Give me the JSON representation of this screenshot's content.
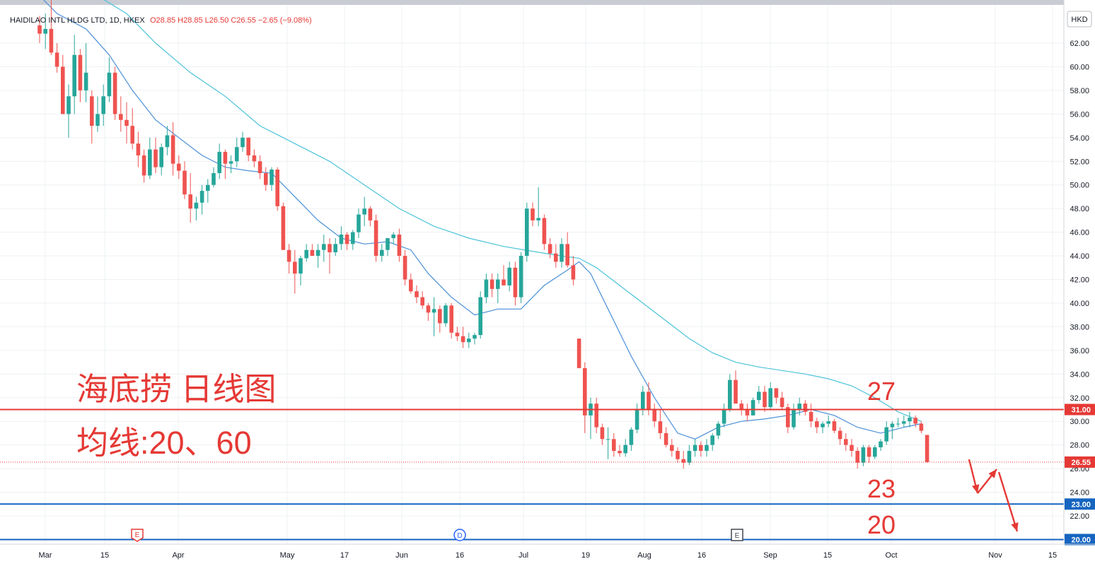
{
  "header": {
    "symbol": "HAIDILAO INTL HLDG LTD, 1D, HKEX",
    "ohlc": "O28.85  H28.85  L26.50  C26.55  −2.65 (−9.08%)"
  },
  "currency_label": "HKD",
  "annotations": {
    "title_line1": "海底捞 日线图",
    "title_line2": "均线:20、60",
    "level_27": "27",
    "level_23": "23",
    "level_20": "20"
  },
  "colors": {
    "up": "#26a69a",
    "down": "#ef5350",
    "ma20": "#4a8fd8",
    "ma60": "#4cc3d9",
    "level_red": "#e53935",
    "level_blue": "#1565c0",
    "last_price": "#e53935",
    "annotation_red": "#e53935"
  },
  "icons": [
    "earnings-marker-icon",
    "dividend-marker-icon",
    "split-marker-icon",
    "red-arrow-icon"
  ],
  "chart_data": {
    "type": "candlestick",
    "x_labels": [
      "Mar",
      "15",
      "Apr",
      "May",
      "17",
      "Jun",
      "16",
      "Jul",
      "19",
      "Aug",
      "16",
      "Sep",
      "15",
      "Oct",
      "Nov",
      "15"
    ],
    "price_labels": [
      "62.00",
      "60.00",
      "58.00",
      "56.00",
      "54.00",
      "52.00",
      "50.00",
      "48.00",
      "46.00",
      "44.00",
      "42.00",
      "40.00",
      "38.00",
      "36.00",
      "34.00",
      "32.00",
      "30.00",
      "28.00",
      "26.00",
      "24.00",
      "22.00"
    ],
    "ylim": [
      20,
      64
    ],
    "levels": [
      {
        "price": 31.0,
        "label": "31.00",
        "kind": "red"
      },
      {
        "price": 23.0,
        "label": "23.00",
        "kind": "blue"
      },
      {
        "price": 20.0,
        "label": "20.00",
        "kind": "blue"
      }
    ],
    "last_price": {
      "price": 26.55,
      "label": "26.55"
    },
    "event_markers": [
      {
        "letter": "E",
        "style": "earnings"
      },
      {
        "letter": "D",
        "style": "dividend"
      },
      {
        "letter": "E",
        "style": "earnings-dark"
      }
    ],
    "candles": [
      [
        63.5,
        64.3,
        62.0,
        62.8
      ],
      [
        62.8,
        64.5,
        61.5,
        63.2
      ],
      [
        63.2,
        66.0,
        61.0,
        61.2
      ],
      [
        61.2,
        62.0,
        59.5,
        60.0
      ],
      [
        60.0,
        61.0,
        56.0,
        56.0
      ],
      [
        56.0,
        58.5,
        54.0,
        57.5
      ],
      [
        57.5,
        62.7,
        56.0,
        61.0
      ],
      [
        61.0,
        61.5,
        57.0,
        58.0
      ],
      [
        58.0,
        62.0,
        57.0,
        59.5
      ],
      [
        57.5,
        58.0,
        53.5,
        55.0
      ],
      [
        55.0,
        57.5,
        54.5,
        56.0
      ],
      [
        56.0,
        58.5,
        55.0,
        57.5
      ],
      [
        57.5,
        60.8,
        57.0,
        59.5
      ],
      [
        59.5,
        60.0,
        55.5,
        56.0
      ],
      [
        56.0,
        57.5,
        54.5,
        55.5
      ],
      [
        55.5,
        57.0,
        53.5,
        55.0
      ],
      [
        55.0,
        56.5,
        53.0,
        53.5
      ],
      [
        53.5,
        54.5,
        51.5,
        52.5
      ],
      [
        52.5,
        53.0,
        50.2,
        50.8
      ],
      [
        50.8,
        54.0,
        50.5,
        53.0
      ],
      [
        53.0,
        54.0,
        51.0,
        51.5
      ],
      [
        51.5,
        53.5,
        50.8,
        53.2
      ],
      [
        53.2,
        55.0,
        52.5,
        54.2
      ],
      [
        54.2,
        55.3,
        50.8,
        51.8
      ],
      [
        51.8,
        52.5,
        50.5,
        51.2
      ],
      [
        51.2,
        52.0,
        48.8,
        49.2
      ],
      [
        49.2,
        51.0,
        46.8,
        48.0
      ],
      [
        48.0,
        49.0,
        47.0,
        48.5
      ],
      [
        48.5,
        50.0,
        47.5,
        49.5
      ],
      [
        49.5,
        50.5,
        48.5,
        50.0
      ],
      [
        50.0,
        51.5,
        49.8,
        51.0
      ],
      [
        51.0,
        53.5,
        50.5,
        52.8
      ],
      [
        52.8,
        53.0,
        50.5,
        51.8
      ],
      [
        51.8,
        52.5,
        51.0,
        52.0
      ],
      [
        52.0,
        54.0,
        51.5,
        53.2
      ],
      [
        53.2,
        54.5,
        52.8,
        54.0
      ],
      [
        54.0,
        54.0,
        52.0,
        52.5
      ],
      [
        52.5,
        53.0,
        51.5,
        52.0
      ],
      [
        52.0,
        52.5,
        50.5,
        51.0
      ],
      [
        51.0,
        51.5,
        49.5,
        50.0
      ],
      [
        50.0,
        51.5,
        49.5,
        51.3
      ],
      [
        51.3,
        51.5,
        47.8,
        48.2
      ],
      [
        48.2,
        48.5,
        44.5,
        44.5
      ],
      [
        44.5,
        45.0,
        42.5,
        43.5
      ],
      [
        43.5,
        44.5,
        40.8,
        42.5
      ],
      [
        42.5,
        44.0,
        41.5,
        43.8
      ],
      [
        43.8,
        45.0,
        43.5,
        44.5
      ],
      [
        44.5,
        45.0,
        44.0,
        44.0
      ],
      [
        44.0,
        45.0,
        43.0,
        44.5
      ],
      [
        44.5,
        45.8,
        43.5,
        45.0
      ],
      [
        45.0,
        45.5,
        42.5,
        44.3
      ],
      [
        44.3,
        45.5,
        44.0,
        45.0
      ],
      [
        45.0,
        46.5,
        44.5,
        45.8
      ],
      [
        45.8,
        46.0,
        44.5,
        45.0
      ],
      [
        45.0,
        46.2,
        44.5,
        46.0
      ],
      [
        46.0,
        48.0,
        45.5,
        47.5
      ],
      [
        47.5,
        49.0,
        46.5,
        48.0
      ],
      [
        48.0,
        48.2,
        46.5,
        47.0
      ],
      [
        47.0,
        47.5,
        43.5,
        44.0
      ],
      [
        44.0,
        45.0,
        43.5,
        44.5
      ],
      [
        44.5,
        45.5,
        44.0,
        45.5
      ],
      [
        45.5,
        46.0,
        45.0,
        45.8
      ],
      [
        45.8,
        46.3,
        43.5,
        44.0
      ],
      [
        44.0,
        44.5,
        41.5,
        42.0
      ],
      [
        42.0,
        42.5,
        40.8,
        41.0
      ],
      [
        41.0,
        41.5,
        40.0,
        40.5
      ],
      [
        40.5,
        41.0,
        39.5,
        39.8
      ],
      [
        39.8,
        40.0,
        38.5,
        39.2
      ],
      [
        39.2,
        40.5,
        37.2,
        39.5
      ],
      [
        39.5,
        39.8,
        37.5,
        38.3
      ],
      [
        38.3,
        40.0,
        38.0,
        39.8
      ],
      [
        39.8,
        40.0,
        37.0,
        37.5
      ],
      [
        37.5,
        38.0,
        36.8,
        37.2
      ],
      [
        37.2,
        38.0,
        36.2,
        36.7
      ],
      [
        36.7,
        37.5,
        36.2,
        37.0
      ],
      [
        37.0,
        37.5,
        36.5,
        37.3
      ],
      [
        37.3,
        41.0,
        37.0,
        40.5
      ],
      [
        40.5,
        42.5,
        40.0,
        42.0
      ],
      [
        42.0,
        42.5,
        40.5,
        41.2
      ],
      [
        41.2,
        42.5,
        40.0,
        42.0
      ],
      [
        42.0,
        43.2,
        41.5,
        41.5
      ],
      [
        41.5,
        43.5,
        41.0,
        43.0
      ],
      [
        43.0,
        43.5,
        39.8,
        40.5
      ],
      [
        40.5,
        44.3,
        40.0,
        44.0
      ],
      [
        44.0,
        48.5,
        43.5,
        48.0
      ],
      [
        48.0,
        48.5,
        46.5,
        47.0
      ],
      [
        47.0,
        49.8,
        46.5,
        47.2
      ],
      [
        47.2,
        47.5,
        44.5,
        45.0
      ],
      [
        45.0,
        45.5,
        43.8,
        44.2
      ],
      [
        44.2,
        45.0,
        43.0,
        43.5
      ],
      [
        43.5,
        45.5,
        43.0,
        45.0
      ],
      [
        45.0,
        46.0,
        43.0,
        43.2
      ],
      [
        43.2,
        44.0,
        41.5,
        42.0
      ],
      [
        37.0,
        37.0,
        34.5,
        34.5
      ],
      [
        34.5,
        35.0,
        29.0,
        30.5
      ],
      [
        30.5,
        32.0,
        28.5,
        31.5
      ],
      [
        31.5,
        32.0,
        29.0,
        29.5
      ],
      [
        29.5,
        29.8,
        28.0,
        28.5
      ],
      [
        28.5,
        29.5,
        26.8,
        28.5
      ],
      [
        28.5,
        29.0,
        27.0,
        27.5
      ],
      [
        27.5,
        28.0,
        27.0,
        27.3
      ],
      [
        27.3,
        28.5,
        27.0,
        28.0
      ],
      [
        28.0,
        29.5,
        27.5,
        29.3
      ],
      [
        29.3,
        31.5,
        29.0,
        31.0
      ],
      [
        31.0,
        33.0,
        30.5,
        32.5
      ],
      [
        32.5,
        33.3,
        30.5,
        31.0
      ],
      [
        31.0,
        31.5,
        29.5,
        30.0
      ],
      [
        30.0,
        31.0,
        28.5,
        29.0
      ],
      [
        29.0,
        29.5,
        27.8,
        28.0
      ],
      [
        28.0,
        28.5,
        27.0,
        27.5
      ],
      [
        27.5,
        27.8,
        26.5,
        26.8
      ],
      [
        26.8,
        27.5,
        26.0,
        26.5
      ],
      [
        26.5,
        28.0,
        26.3,
        27.5
      ],
      [
        27.5,
        28.5,
        27.0,
        28.0
      ],
      [
        28.0,
        28.3,
        27.0,
        27.5
      ],
      [
        27.5,
        28.5,
        27.0,
        28.0
      ],
      [
        28.0,
        29.0,
        27.5,
        28.8
      ],
      [
        28.8,
        30.0,
        28.5,
        29.8
      ],
      [
        29.8,
        31.5,
        29.5,
        31.0
      ],
      [
        31.0,
        34.0,
        30.8,
        33.5
      ],
      [
        33.5,
        34.3,
        31.5,
        31.5
      ],
      [
        31.5,
        31.8,
        30.5,
        31.0
      ],
      [
        31.0,
        31.5,
        30.0,
        30.5
      ],
      [
        30.5,
        32.0,
        30.5,
        31.8
      ],
      [
        31.8,
        33.0,
        31.5,
        32.5
      ],
      [
        32.5,
        33.0,
        30.8,
        31.2
      ],
      [
        31.2,
        33.3,
        31.0,
        32.8
      ],
      [
        32.8,
        32.8,
        31.5,
        32.0
      ],
      [
        32.0,
        32.5,
        31.0,
        31.2
      ],
      [
        31.2,
        31.5,
        29.0,
        29.5
      ],
      [
        29.5,
        31.5,
        29.3,
        31.0
      ],
      [
        31.0,
        32.0,
        30.5,
        31.5
      ],
      [
        31.5,
        31.8,
        30.5,
        30.8
      ],
      [
        30.8,
        31.5,
        29.5,
        30.0
      ],
      [
        30.0,
        30.3,
        29.0,
        29.5
      ],
      [
        29.5,
        30.0,
        29.0,
        29.8
      ],
      [
        29.8,
        30.5,
        29.5,
        30.0
      ],
      [
        30.0,
        30.2,
        29.0,
        29.2
      ],
      [
        29.2,
        29.5,
        28.0,
        28.5
      ],
      [
        28.5,
        29.0,
        27.5,
        28.0
      ],
      [
        28.0,
        28.5,
        27.0,
        27.5
      ],
      [
        27.5,
        27.8,
        26.0,
        26.5
      ],
      [
        26.5,
        28.0,
        26.2,
        27.8
      ],
      [
        27.8,
        28.0,
        26.5,
        27.0
      ],
      [
        27.0,
        28.0,
        26.8,
        27.8
      ],
      [
        27.8,
        28.5,
        27.5,
        28.3
      ],
      [
        28.3,
        30.0,
        28.0,
        29.5
      ],
      [
        29.5,
        30.0,
        28.5,
        29.8
      ],
      [
        29.8,
        30.3,
        29.5,
        29.8
      ],
      [
        29.8,
        30.5,
        29.5,
        30.0
      ],
      [
        30.0,
        30.8,
        29.5,
        30.3
      ],
      [
        30.3,
        30.5,
        29.5,
        29.8
      ],
      [
        29.8,
        30.0,
        29.0,
        29.2
      ],
      [
        28.85,
        28.85,
        26.5,
        26.55
      ]
    ],
    "ma20": [
      [
        0,
        66.0
      ],
      [
        3,
        64.5
      ],
      [
        8,
        63.2
      ],
      [
        12,
        61.0
      ],
      [
        16,
        58.0
      ],
      [
        20,
        55.5
      ],
      [
        24,
        54.0
      ],
      [
        28,
        52.5
      ],
      [
        32,
        51.5
      ],
      [
        36,
        51.2
      ],
      [
        40,
        51.0
      ],
      [
        44,
        49.0
      ],
      [
        48,
        47.0
      ],
      [
        52,
        45.5
      ],
      [
        56,
        45.0
      ],
      [
        60,
        45.2
      ],
      [
        64,
        44.5
      ],
      [
        67,
        42.5
      ],
      [
        71,
        40.5
      ],
      [
        75,
        39.0
      ],
      [
        79,
        39.5
      ],
      [
        83,
        39.5
      ],
      [
        87,
        41.5
      ],
      [
        91,
        42.8
      ],
      [
        93,
        43.5
      ],
      [
        95,
        42.5
      ],
      [
        98,
        39.5
      ],
      [
        102,
        35.5
      ],
      [
        106,
        32.0
      ],
      [
        110,
        29.0
      ],
      [
        113,
        28.5
      ],
      [
        117,
        29.5
      ],
      [
        121,
        30.0
      ],
      [
        125,
        30.2
      ],
      [
        129,
        30.5
      ],
      [
        133,
        31.0
      ],
      [
        137,
        30.5
      ],
      [
        141,
        29.5
      ],
      [
        145,
        29.0
      ],
      [
        149,
        29.5
      ],
      [
        152,
        29.8
      ]
    ],
    "ma60": [
      [
        10,
        66.0
      ],
      [
        15,
        64.5
      ],
      [
        20,
        62.0
      ],
      [
        26,
        59.5
      ],
      [
        32,
        57.5
      ],
      [
        38,
        55.0
      ],
      [
        44,
        53.5
      ],
      [
        50,
        52.0
      ],
      [
        56,
        50.0
      ],
      [
        62,
        48.0
      ],
      [
        68,
        46.5
      ],
      [
        74,
        45.5
      ],
      [
        80,
        44.8
      ],
      [
        86,
        44.3
      ],
      [
        90,
        44.0
      ],
      [
        93,
        43.8
      ],
      [
        96,
        43.0
      ],
      [
        100,
        41.5
      ],
      [
        104,
        40.0
      ],
      [
        108,
        38.5
      ],
      [
        112,
        37.0
      ],
      [
        116,
        35.8
      ],
      [
        120,
        35.0
      ],
      [
        124,
        34.6
      ],
      [
        128,
        34.3
      ],
      [
        132,
        34.0
      ],
      [
        136,
        33.6
      ],
      [
        140,
        33.0
      ],
      [
        144,
        32.0
      ],
      [
        148,
        30.8
      ],
      [
        152,
        30.0
      ]
    ]
  }
}
